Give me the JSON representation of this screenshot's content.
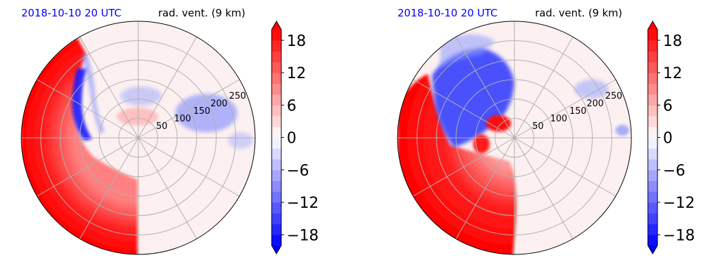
{
  "panels": [
    {
      "date_label": "2018-10-10 20 UTC",
      "title": "rad. vent. (9 km)",
      "ring_labels": [
        "50",
        "100",
        "150",
        "200",
        "250"
      ]
    },
    {
      "date_label": "2018-10-10 20 UTC",
      "title": "rad. vent. (9 km)",
      "ring_labels": [
        "50",
        "100",
        "150",
        "200",
        "250"
      ]
    }
  ],
  "colorbar": {
    "tick_labels": [
      "18",
      "12",
      "6",
      "0",
      "−6",
      "−12",
      "−18"
    ],
    "tick_values": [
      18,
      12,
      6,
      0,
      -6,
      -12,
      -18
    ],
    "range": [
      -20,
      20
    ],
    "low_color": "#0000ff",
    "mid_color": "#ffffff",
    "high_color": "#ff0000"
  },
  "colors": {
    "date_label": "#0000ff",
    "grid": "#b0b0b0",
    "background_tint": "#fdf0f0"
  },
  "chart_data": [
    {
      "type": "heatmap",
      "projection": "polar",
      "title": "rad. vent. (9 km)",
      "date_label": "2018-10-10 20 UTC",
      "ring_values": [
        50,
        100,
        150,
        200,
        250
      ],
      "spoke_angles_deg": [
        0,
        30,
        60,
        90,
        120,
        150,
        180,
        210,
        240,
        270,
        300,
        330
      ],
      "colorbar_ticks": [
        18,
        12,
        6,
        0,
        -6,
        -12,
        -18
      ],
      "value_range": [
        -20,
        20
      ],
      "grid": true
    },
    {
      "type": "heatmap",
      "projection": "polar",
      "title": "rad. vent. (9 km)",
      "date_label": "2018-10-10 20 UTC",
      "ring_values": [
        50,
        100,
        150,
        200,
        250
      ],
      "spoke_angles_deg": [
        0,
        30,
        60,
        90,
        120,
        150,
        180,
        210,
        240,
        270,
        300,
        330
      ],
      "colorbar_ticks": [
        18,
        12,
        6,
        0,
        -6,
        -12,
        -18
      ],
      "value_range": [
        -20,
        20
      ],
      "grid": true
    }
  ]
}
